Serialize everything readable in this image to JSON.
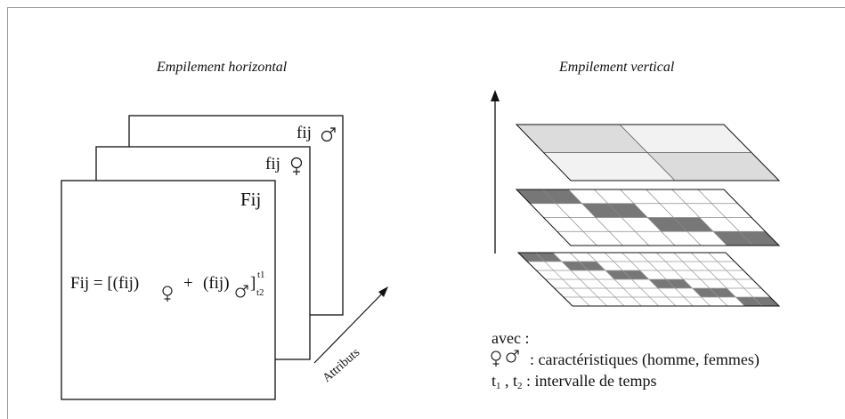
{
  "titles": {
    "horizontal": "Empilement horizontal",
    "vertical": "Empilement vertical"
  },
  "horizontal_stack": {
    "sheet_back_label": "fij",
    "sheet_middle_label": "fij",
    "sheet_front_label": "Fij",
    "formula": {
      "lhs": "Fij = [(fij)",
      "plus": "+",
      "term2": "(fij)",
      "close": "]",
      "sup": "t1",
      "sub": "t2"
    },
    "axis_label": "Attributs"
  },
  "legend": {
    "intro": "avec :",
    "symbols_desc": ": caractéristiques (homme, femmes)",
    "time_var1": "t",
    "time_sub1": "1",
    "time_sep": " , ",
    "time_var2": "t",
    "time_sub2": "2",
    "time_desc": " : intervalle de temps"
  },
  "icons": {
    "male": "male-symbol-icon",
    "female": "female-symbol-icon"
  },
  "colors": {
    "line": "#111111",
    "top_layer_fill": "#f2f2f2",
    "top_layer_shade": "#dcdcdc",
    "dark_cell": "#777777",
    "frame": "#9a9a9a"
  }
}
